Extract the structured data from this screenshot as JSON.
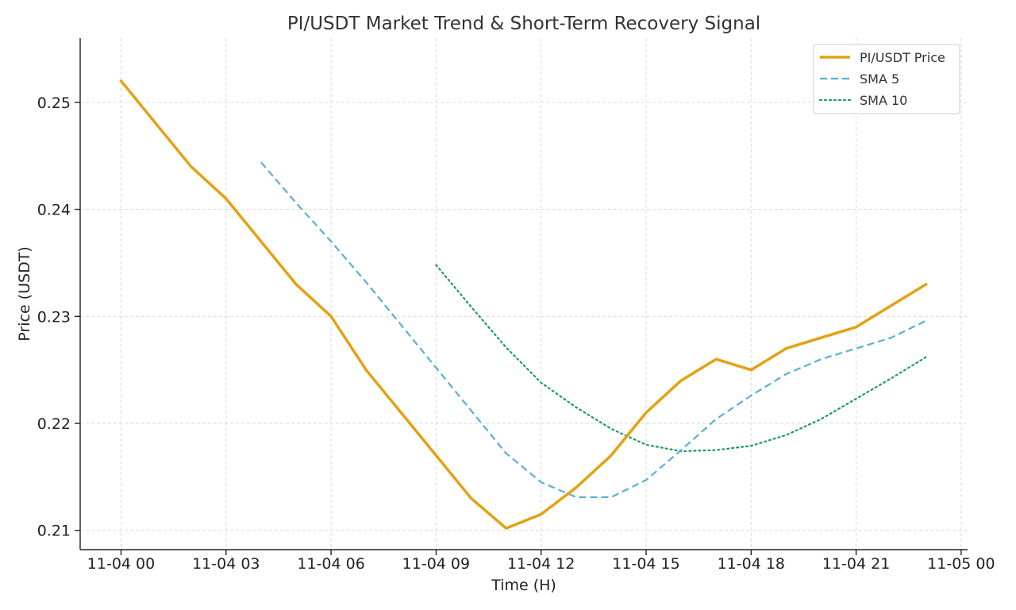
{
  "chart_data": {
    "type": "line",
    "title": "PI/USDT Market Trend & Short-Term Recovery Signal",
    "xlabel": "Time (H)",
    "ylabel": "Price (USDT)",
    "x": [
      "11-04 00",
      "11-04 01",
      "11-04 02",
      "11-04 03",
      "11-04 04",
      "11-04 05",
      "11-04 06",
      "11-04 07",
      "11-04 08",
      "11-04 09",
      "11-04 10",
      "11-04 11",
      "11-04 12",
      "11-04 13",
      "11-04 14",
      "11-04 15",
      "11-04 16",
      "11-04 17",
      "11-04 18",
      "11-04 19",
      "11-04 20",
      "11-04 21",
      "11-04 22",
      "11-04 23"
    ],
    "x_ticks": [
      "11-04 00",
      "11-04 03",
      "11-04 06",
      "11-04 09",
      "11-04 12",
      "11-04 15",
      "11-04 18",
      "11-04 21",
      "11-05 00"
    ],
    "y_ticks": [
      0.21,
      0.22,
      0.23,
      0.24,
      0.25
    ],
    "ylim": [
      0.2082,
      0.256
    ],
    "grid": true,
    "legend_position": "top-right",
    "series": [
      {
        "name": "PI/USDT Price",
        "color": "#e3a212",
        "style": "solid",
        "values": [
          0.252,
          0.248,
          0.244,
          0.241,
          0.237,
          0.233,
          0.23,
          0.225,
          0.221,
          0.217,
          0.213,
          0.2102,
          0.2115,
          0.214,
          0.217,
          0.221,
          0.224,
          0.226,
          0.225,
          0.227,
          0.228,
          0.229,
          0.231,
          0.233
        ]
      },
      {
        "name": "SMA 5",
        "color": "#58b0d6",
        "style": "dashed",
        "values": [
          null,
          null,
          null,
          null,
          0.2444,
          0.2406,
          0.237,
          0.2332,
          0.2292,
          0.2252,
          0.2212,
          0.2172,
          0.2145,
          0.2131,
          0.2131,
          0.2147,
          0.2175,
          0.2204,
          0.2226,
          0.2246,
          0.226,
          0.227,
          0.228,
          0.2296
        ]
      },
      {
        "name": "SMA 10",
        "color": "#1e9a61",
        "style": "dotted",
        "values": [
          null,
          null,
          null,
          null,
          null,
          null,
          null,
          null,
          null,
          0.2348,
          0.2309,
          0.2271,
          0.2238,
          0.2215,
          0.2195,
          0.218,
          0.2174,
          0.2175,
          0.2179,
          0.2189,
          0.2204,
          0.2223,
          0.2242,
          0.2262
        ]
      }
    ]
  }
}
